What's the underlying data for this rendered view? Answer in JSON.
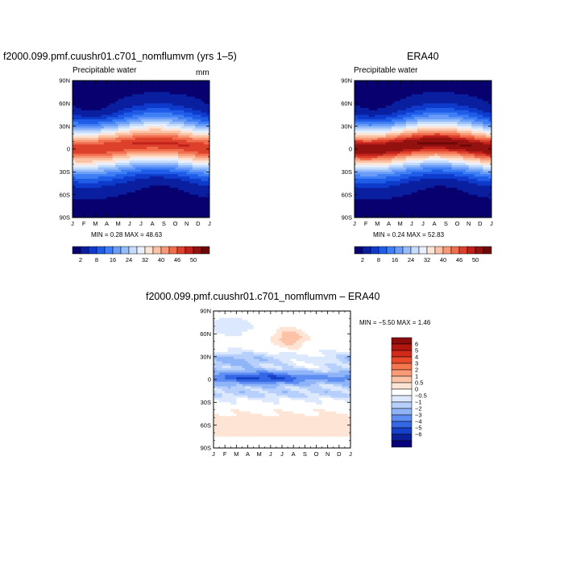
{
  "palette_diverging": [
    "#08006e",
    "#0a1fa0",
    "#0f3bcc",
    "#1f5de8",
    "#3f7ff5",
    "#6a9cf8",
    "#95bdfa",
    "#c5dcfc",
    "#e8f0fe",
    "#fde4d4",
    "#fbc3a6",
    "#f89a78",
    "#f06e4e",
    "#dd412c",
    "#c0211b",
    "#931210",
    "#6e0808"
  ],
  "chart_data": [
    {
      "type": "heatmap",
      "title": "f2000.099.pmf.cuushr01.c701_nomflumvm (yrs 1–5)",
      "subtitle": "Precipitable water",
      "units": "mm",
      "x_ticks": [
        "J",
        "F",
        "M",
        "A",
        "M",
        "J",
        "J",
        "A",
        "S",
        "O",
        "N",
        "D",
        "J"
      ],
      "y_ticks": [
        "90N",
        "60N",
        "30N",
        "0",
        "30S",
        "60S",
        "90S"
      ],
      "min": 0.28,
      "max": 48.63,
      "stats_text": "MIN =    0.28  MAX =   48.63",
      "colorbar_labels": [
        "2",
        "8",
        "16",
        "24",
        "32",
        "40",
        "46",
        "50"
      ],
      "colorbar_bins": 17
    },
    {
      "type": "heatmap",
      "title": "ERA40",
      "subtitle": "Precipitable water",
      "x_ticks": [
        "J",
        "F",
        "M",
        "A",
        "M",
        "J",
        "J",
        "A",
        "S",
        "O",
        "N",
        "D",
        "J"
      ],
      "y_ticks": [
        "90N",
        "60N",
        "30N",
        "0",
        "30S",
        "60S",
        "90S"
      ],
      "min": 0.24,
      "max": 52.83,
      "stats_text": "MIN =    0.24  MAX =   52.83",
      "colorbar_labels": [
        "2",
        "8",
        "16",
        "24",
        "32",
        "40",
        "46",
        "50"
      ],
      "colorbar_bins": 17
    },
    {
      "type": "heatmap",
      "title": "f2000.099.pmf.cuushr01.c701_nomflumvm  –  ERA40",
      "x_ticks": [
        "J",
        "F",
        "M",
        "A",
        "M",
        "J",
        "J",
        "A",
        "S",
        "O",
        "N",
        "D",
        "J"
      ],
      "y_ticks": [
        "90N",
        "60N",
        "30N",
        "0",
        "30S",
        "60S",
        "90S"
      ],
      "min": -5.5,
      "max": 1.46,
      "stats_text": "MIN =   −5.50  MAX =    1.46",
      "legend_labels": [
        "6",
        "5",
        "4",
        "3",
        "2",
        "1",
        "0.5",
        "0",
        "−0.5",
        "−1",
        "−2",
        "−3",
        "−4",
        "−5",
        "−6"
      ],
      "legend_colors": [
        "#8a0c0c",
        "#b3150f",
        "#d12a1a",
        "#e84a2c",
        "#f6764e",
        "#fa9a77",
        "#fcc3a7",
        "#fde4d4",
        "#ffffff",
        "#dbe8fd",
        "#b7d0fb",
        "#8fb4f8",
        "#5f8ef2",
        "#3566e3",
        "#1740c8",
        "#0a1f98",
        "#06007a"
      ]
    }
  ]
}
